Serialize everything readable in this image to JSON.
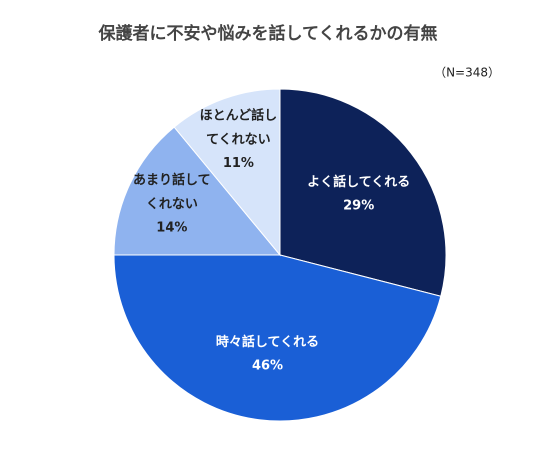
{
  "chart_data": {
    "type": "pie",
    "title": "保護者に不安や悩みを話してくれるかの有無",
    "subtitle": "（N=348）",
    "categories": [
      "よく話してくれる",
      "時々話してくれる",
      "あまり話してくれない",
      "ほとんど話してくれない"
    ],
    "values": [
      29,
      46,
      14,
      11
    ],
    "value_labels": [
      "29%",
      "46%",
      "14%",
      "11%"
    ],
    "colors": [
      "#0d2259",
      "#1a5fd6",
      "#8fb3ef",
      "#d6e4fa"
    ]
  }
}
